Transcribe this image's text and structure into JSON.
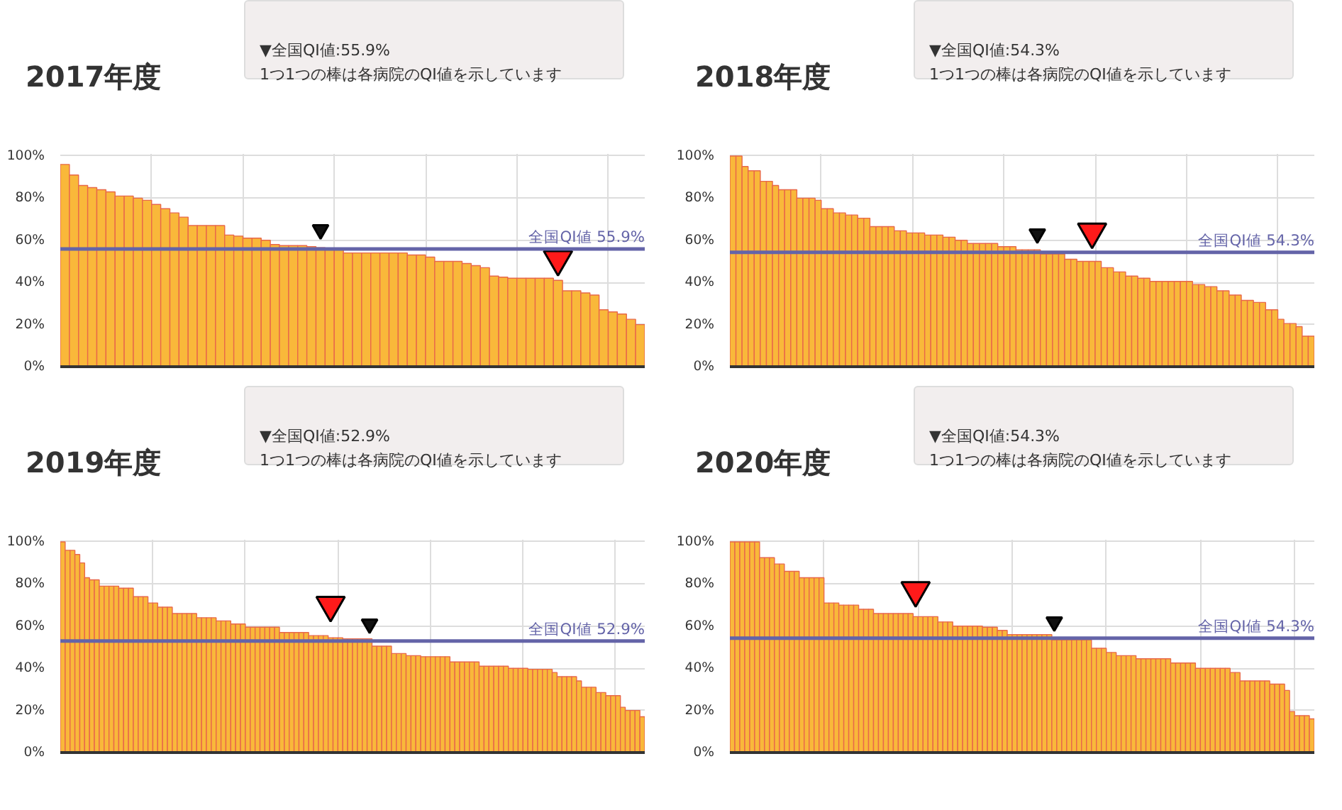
{
  "chart_data": [
    {
      "type": "bar",
      "title": "2017年度",
      "annotations": [
        "▼全国QI値:55.9%",
        "1つ1つの棒は各病院のQI値を示しています"
      ],
      "tick_labels": "y",
      "grid": true,
      "ylim": [
        0,
        101
      ],
      "yticks": [
        {
          "value": 0,
          "label": "0%"
        },
        {
          "value": 20,
          "label": "20%"
        },
        {
          "value": 40,
          "label": "40%"
        },
        {
          "value": 60,
          "label": "60%"
        },
        {
          "value": 80,
          "label": "80%"
        },
        {
          "value": 100,
          "label": "100%"
        }
      ],
      "ref_lines": [
        {
          "axis": "y",
          "value": 55.9,
          "label": "全国QI値 55.9%",
          "color": "#6464a8"
        }
      ],
      "categories": [
        null,
        null,
        null,
        null,
        null,
        null,
        null,
        null,
        null,
        null,
        null,
        null,
        null,
        null,
        null,
        null,
        null,
        null,
        null,
        null,
        null,
        null,
        null,
        null,
        null,
        null,
        null,
        null,
        null,
        null,
        null,
        null,
        null,
        null,
        null,
        null,
        null,
        null,
        null,
        null,
        null,
        null,
        null,
        null,
        null,
        null,
        null,
        null,
        null,
        null,
        null,
        null,
        null,
        null,
        null,
        null,
        null,
        null,
        null,
        null,
        null,
        null,
        null,
        null
      ],
      "series": [
        {
          "color": "#f9b83a",
          "values": [
            96,
            91,
            86,
            85,
            84,
            83,
            81,
            81,
            80,
            79,
            77,
            75,
            73,
            71,
            67,
            67,
            67,
            67,
            62.5,
            62,
            61,
            61,
            60,
            58,
            57.5,
            57.5,
            57.5,
            57,
            56.5,
            56,
            56,
            54,
            54,
            54,
            54,
            54,
            54,
            54,
            53,
            53,
            52,
            50,
            50,
            50,
            49,
            48,
            47,
            43,
            42.5,
            42,
            42,
            42,
            42,
            42,
            41,
            36,
            36,
            35,
            34,
            27,
            26,
            25,
            22.5,
            20
          ]
        },
        {
          "type": "scatter",
          "marker": "triangle",
          "color": "#111111",
          "values": [
            null,
            null,
            null,
            null,
            null,
            null,
            null,
            null,
            null,
            null,
            null,
            null,
            null,
            null,
            null,
            null,
            null,
            null,
            null,
            null,
            null,
            null,
            null,
            null,
            null,
            null,
            null,
            null,
            65,
            null,
            null,
            null,
            null,
            null,
            null,
            null,
            null,
            null,
            null,
            null,
            null,
            null,
            null,
            null,
            null,
            null,
            null,
            null,
            null,
            null,
            null,
            null,
            null,
            null,
            null,
            null,
            null,
            null,
            null,
            null,
            null,
            null,
            null,
            null
          ]
        },
        {
          "type": "scatter",
          "marker": "triangle",
          "color": "#ff1a1a",
          "values": [
            null,
            null,
            null,
            null,
            null,
            null,
            null,
            null,
            null,
            null,
            null,
            null,
            null,
            null,
            null,
            null,
            null,
            null,
            null,
            null,
            null,
            null,
            null,
            null,
            null,
            null,
            null,
            null,
            null,
            null,
            null,
            null,
            null,
            null,
            null,
            null,
            null,
            null,
            null,
            null,
            null,
            null,
            null,
            null,
            null,
            null,
            null,
            null,
            null,
            null,
            null,
            null,
            null,
            null,
            51,
            null,
            null,
            null,
            null,
            null,
            null,
            null,
            null,
            null
          ]
        }
      ]
    },
    {
      "type": "bar",
      "title": "2018年度",
      "annotations": [
        "▼全国QI値:54.3%",
        "1つ1つの棒は各病院のQI値を示しています"
      ],
      "tick_labels": "y",
      "grid": true,
      "ylim": [
        0,
        101
      ],
      "yticks": [
        {
          "value": 0,
          "label": "0%"
        },
        {
          "value": 20,
          "label": "20%"
        },
        {
          "value": 40,
          "label": "40%"
        },
        {
          "value": 60,
          "label": "60%"
        },
        {
          "value": 80,
          "label": "80%"
        },
        {
          "value": 100,
          "label": "100%"
        }
      ],
      "ref_lines": [
        {
          "axis": "y",
          "value": 54.3,
          "label": "全国QI値 54.3%",
          "color": "#6464a8"
        }
      ],
      "categories": [
        null,
        null,
        null,
        null,
        null,
        null,
        null,
        null,
        null,
        null,
        null,
        null,
        null,
        null,
        null,
        null,
        null,
        null,
        null,
        null,
        null,
        null,
        null,
        null,
        null,
        null,
        null,
        null,
        null,
        null,
        null,
        null,
        null,
        null,
        null,
        null,
        null,
        null,
        null,
        null,
        null,
        null,
        null,
        null,
        null,
        null,
        null,
        null,
        null,
        null,
        null,
        null,
        null,
        null,
        null,
        null,
        null,
        null,
        null,
        null,
        null,
        null,
        null,
        null,
        null,
        null,
        null,
        null,
        null,
        null,
        null,
        null,
        null,
        null,
        null,
        null,
        null,
        null,
        null,
        null,
        null,
        null,
        null,
        null,
        null,
        null,
        null,
        null,
        null,
        null,
        null,
        null,
        null,
        null,
        null,
        null
      ],
      "series": [
        {
          "color": "#f9b83a",
          "values": [
            100,
            100,
            95,
            93,
            93,
            88,
            88,
            86,
            84,
            84,
            84,
            80,
            80,
            80,
            79,
            75,
            75,
            73,
            73,
            72,
            72,
            70.5,
            70.5,
            66.5,
            66.5,
            66.5,
            66.5,
            64.5,
            64.5,
            63.5,
            63.5,
            63.5,
            62.5,
            62.5,
            62.5,
            61.5,
            61.5,
            60,
            60,
            58.5,
            58.5,
            58.5,
            58.5,
            58.5,
            57,
            57,
            57,
            55.5,
            55.5,
            55.5,
            55.5,
            53.5,
            53.5,
            53.5,
            53.5,
            51,
            51,
            50,
            50,
            50,
            50,
            47,
            47,
            45,
            45,
            43,
            43,
            42,
            42,
            40.5,
            40.5,
            40.5,
            40.5,
            40.5,
            40.5,
            40.5,
            39,
            39,
            38,
            38,
            36,
            36,
            34,
            34,
            31.5,
            31.5,
            30.5,
            30.5,
            27,
            27,
            22.5,
            20.5,
            20.5,
            19,
            14.5,
            14.5
          ]
        },
        {
          "type": "scatter",
          "marker": "triangle",
          "color": "#111111",
          "values": [
            null,
            null,
            null,
            null,
            null,
            null,
            null,
            null,
            null,
            null,
            null,
            null,
            null,
            null,
            null,
            null,
            null,
            null,
            null,
            null,
            null,
            null,
            null,
            null,
            null,
            null,
            null,
            null,
            null,
            null,
            null,
            null,
            null,
            null,
            null,
            null,
            null,
            null,
            null,
            null,
            null,
            null,
            null,
            null,
            null,
            null,
            null,
            null,
            null,
            null,
            63,
            null,
            null,
            null,
            null,
            null,
            null,
            null,
            null,
            null,
            null,
            null,
            null,
            null,
            null,
            null,
            null,
            null,
            null,
            null,
            null,
            null,
            null,
            null,
            null,
            null,
            null,
            null,
            null,
            null,
            null,
            null,
            null,
            null,
            null,
            null,
            null,
            null,
            null,
            null,
            null,
            null,
            null,
            null,
            null,
            null
          ]
        },
        {
          "type": "scatter",
          "marker": "triangle",
          "color": "#ff1a1a",
          "values": [
            null,
            null,
            null,
            null,
            null,
            null,
            null,
            null,
            null,
            null,
            null,
            null,
            null,
            null,
            null,
            null,
            null,
            null,
            null,
            null,
            null,
            null,
            null,
            null,
            null,
            null,
            null,
            null,
            null,
            null,
            null,
            null,
            null,
            null,
            null,
            null,
            null,
            null,
            null,
            null,
            null,
            null,
            null,
            null,
            null,
            null,
            null,
            null,
            null,
            null,
            null,
            null,
            null,
            null,
            null,
            null,
            null,
            null,
            null,
            64,
            null,
            null,
            null,
            null,
            null,
            null,
            null,
            null,
            null,
            null,
            null,
            null,
            null,
            null,
            null,
            null,
            null,
            null,
            null,
            null,
            null,
            null,
            null,
            null,
            null,
            null,
            null,
            null,
            null,
            null,
            null,
            null,
            null,
            null,
            null,
            null
          ]
        }
      ]
    },
    {
      "type": "bar",
      "title": "2019年度",
      "annotations": [
        "▼全国QI値:52.9%",
        "1つ1つの棒は各病院のQI値を示しています"
      ],
      "tick_labels": "y",
      "grid": true,
      "ylim": [
        0,
        101
      ],
      "yticks": [
        {
          "value": 0,
          "label": "0%"
        },
        {
          "value": 20,
          "label": "20%"
        },
        {
          "value": 40,
          "label": "40%"
        },
        {
          "value": 60,
          "label": "60%"
        },
        {
          "value": 80,
          "label": "80%"
        },
        {
          "value": 100,
          "label": "100%"
        }
      ],
      "ref_lines": [
        {
          "axis": "y",
          "value": 52.9,
          "label": "全国QI値 52.9%",
          "color": "#6464a8"
        }
      ],
      "categories": [
        null,
        null,
        null,
        null,
        null,
        null,
        null,
        null,
        null,
        null,
        null,
        null,
        null,
        null,
        null,
        null,
        null,
        null,
        null,
        null,
        null,
        null,
        null,
        null,
        null,
        null,
        null,
        null,
        null,
        null,
        null,
        null,
        null,
        null,
        null,
        null,
        null,
        null,
        null,
        null,
        null,
        null,
        null,
        null,
        null,
        null,
        null,
        null,
        null,
        null,
        null,
        null,
        null,
        null,
        null,
        null,
        null,
        null,
        null,
        null,
        null,
        null,
        null,
        null,
        null,
        null,
        null,
        null,
        null,
        null,
        null,
        null,
        null,
        null,
        null,
        null,
        null,
        null,
        null,
        null,
        null,
        null,
        null,
        null,
        null,
        null,
        null,
        null,
        null,
        null,
        null,
        null,
        null,
        null,
        null,
        null,
        null,
        null,
        null,
        null,
        null,
        null,
        null,
        null,
        null,
        null,
        null,
        null,
        null,
        null,
        null,
        null,
        null,
        null,
        null,
        null,
        null,
        null,
        null,
        null
      ],
      "series": [
        {
          "color": "#f9b83a",
          "values": [
            100,
            96,
            96,
            94,
            90,
            83,
            82,
            82,
            79,
            79,
            79,
            79,
            78,
            78,
            78,
            74,
            74,
            74,
            71,
            71,
            69,
            69,
            69,
            66,
            66,
            66,
            66,
            66,
            64,
            64,
            64,
            64,
            62.5,
            62.5,
            62.5,
            61,
            61,
            61,
            59.5,
            59.5,
            59.5,
            59.5,
            59.5,
            59.5,
            59.5,
            57,
            57,
            57,
            57,
            57,
            57,
            55.5,
            55.5,
            55.5,
            55.5,
            54.5,
            54.5,
            54.5,
            54,
            54,
            54,
            54,
            54,
            54,
            50.5,
            50.5,
            50.5,
            50.5,
            47,
            47,
            47,
            46,
            46,
            46,
            45.5,
            45.5,
            45.5,
            45.5,
            45.5,
            45.5,
            43,
            43,
            43,
            43,
            43,
            43,
            41,
            41,
            41,
            41,
            41,
            41,
            40,
            40,
            40,
            40,
            39.5,
            39.5,
            39.5,
            39.5,
            39.5,
            38,
            36,
            36,
            36,
            36,
            34,
            31,
            31,
            31,
            28.5,
            28.5,
            27,
            27,
            27,
            21.5,
            20,
            20,
            20,
            17
          ]
        },
        {
          "type": "scatter",
          "marker": "triangle",
          "color": "#111111",
          "values": [
            null,
            null,
            null,
            null,
            null,
            null,
            null,
            null,
            null,
            null,
            null,
            null,
            null,
            null,
            null,
            null,
            null,
            null,
            null,
            null,
            null,
            null,
            null,
            null,
            null,
            null,
            null,
            null,
            null,
            null,
            null,
            null,
            null,
            null,
            null,
            null,
            null,
            null,
            null,
            null,
            null,
            null,
            null,
            null,
            null,
            null,
            null,
            null,
            null,
            null,
            null,
            null,
            null,
            null,
            null,
            null,
            null,
            null,
            null,
            null,
            null,
            null,
            null,
            61,
            null,
            null,
            null,
            null,
            null,
            null,
            null,
            null,
            null,
            null,
            null,
            null,
            null,
            null,
            null,
            null,
            null,
            null,
            null,
            null,
            null,
            null,
            null,
            null,
            null,
            null,
            null,
            null,
            null,
            null,
            null,
            null,
            null,
            null,
            null,
            null,
            null,
            null,
            null,
            null,
            null,
            null,
            null,
            null,
            null,
            null,
            null,
            null,
            null,
            null,
            null,
            null,
            null,
            null,
            null,
            null
          ]
        },
        {
          "type": "scatter",
          "marker": "triangle",
          "color": "#ff1a1a",
          "values": [
            null,
            null,
            null,
            null,
            null,
            null,
            null,
            null,
            null,
            null,
            null,
            null,
            null,
            null,
            null,
            null,
            null,
            null,
            null,
            null,
            null,
            null,
            null,
            null,
            null,
            null,
            null,
            null,
            null,
            null,
            null,
            null,
            null,
            null,
            null,
            null,
            null,
            null,
            null,
            null,
            null,
            null,
            null,
            null,
            null,
            null,
            null,
            null,
            null,
            null,
            null,
            null,
            null,
            null,
            null,
            70,
            null,
            null,
            null,
            null,
            null,
            null,
            null,
            null,
            null,
            null,
            null,
            null,
            null,
            null,
            null,
            null,
            null,
            null,
            null,
            null,
            null,
            null,
            null,
            null,
            null,
            null,
            null,
            null,
            null,
            null,
            null,
            null,
            null,
            null,
            null,
            null,
            null,
            null,
            null,
            null,
            null,
            null,
            null,
            null,
            null,
            null,
            null,
            null,
            null,
            null,
            null,
            null,
            null,
            null,
            null,
            null,
            null,
            null,
            null,
            null,
            null,
            null,
            null,
            null
          ]
        }
      ]
    },
    {
      "type": "bar",
      "title": "2020年度",
      "annotations": [
        "▼全国QI値:54.3%",
        "1つ1つの棒は各病院のQI値を示しています"
      ],
      "tick_labels": "y",
      "grid": true,
      "ylim": [
        0,
        101
      ],
      "yticks": [
        {
          "value": 0,
          "label": "0%"
        },
        {
          "value": 20,
          "label": "20%"
        },
        {
          "value": 40,
          "label": "40%"
        },
        {
          "value": 60,
          "label": "60%"
        },
        {
          "value": 80,
          "label": "80%"
        },
        {
          "value": 100,
          "label": "100%"
        }
      ],
      "ref_lines": [
        {
          "axis": "y",
          "value": 54.3,
          "label": "全国QI値 54.3%",
          "color": "#6464a8"
        }
      ],
      "categories": [
        null,
        null,
        null,
        null,
        null,
        null,
        null,
        null,
        null,
        null,
        null,
        null,
        null,
        null,
        null,
        null,
        null,
        null,
        null,
        null,
        null,
        null,
        null,
        null,
        null,
        null,
        null,
        null,
        null,
        null,
        null,
        null,
        null,
        null,
        null,
        null,
        null,
        null,
        null,
        null,
        null,
        null,
        null,
        null,
        null,
        null,
        null,
        null,
        null,
        null,
        null,
        null,
        null,
        null,
        null,
        null,
        null,
        null,
        null,
        null,
        null,
        null,
        null,
        null,
        null,
        null,
        null,
        null,
        null,
        null,
        null,
        null,
        null,
        null,
        null,
        null,
        null,
        null,
        null,
        null,
        null,
        null,
        null,
        null,
        null,
        null,
        null,
        null,
        null,
        null,
        null,
        null,
        null,
        null,
        null,
        null,
        null,
        null,
        null,
        null,
        null,
        null,
        null,
        null,
        null,
        null,
        null,
        null,
        null,
        null,
        null,
        null,
        null,
        null,
        null,
        null,
        null,
        null
      ],
      "series": [
        {
          "color": "#f9b83a",
          "values": [
            100,
            100,
            100,
            100,
            100,
            100,
            92.5,
            92.5,
            92.5,
            89.5,
            89.5,
            86,
            86,
            86,
            83,
            83,
            83,
            83,
            83,
            71,
            71,
            71,
            70,
            70,
            70,
            70,
            68,
            68,
            68,
            66,
            66,
            66,
            66,
            66,
            66,
            66,
            66,
            64.5,
            64.5,
            64.5,
            64.5,
            64.5,
            62,
            62,
            62,
            60,
            60,
            60,
            60,
            60,
            60,
            59.5,
            59.5,
            59.5,
            58,
            58,
            56,
            56,
            56,
            56,
            56,
            56,
            56,
            56,
            56,
            53.5,
            53.5,
            53.5,
            53.5,
            53.5,
            53.5,
            53.5,
            53.5,
            49.5,
            49.5,
            49.5,
            47.5,
            47.5,
            46,
            46,
            46,
            46,
            44.5,
            44.5,
            44.5,
            44.5,
            44.5,
            44.5,
            44.5,
            42.5,
            42.5,
            42.5,
            42.5,
            42.5,
            40,
            40,
            40,
            40,
            40,
            40,
            40,
            38,
            38,
            34,
            34,
            34,
            34,
            34,
            34,
            32.5,
            32.5,
            32.5,
            29.5,
            19.5,
            17.5,
            17.5,
            17.5,
            16
          ]
        },
        {
          "type": "scatter",
          "marker": "triangle",
          "color": "#111111",
          "values": [
            null,
            null,
            null,
            null,
            null,
            null,
            null,
            null,
            null,
            null,
            null,
            null,
            null,
            null,
            null,
            null,
            null,
            null,
            null,
            null,
            null,
            null,
            null,
            null,
            null,
            null,
            null,
            null,
            null,
            null,
            null,
            null,
            null,
            null,
            null,
            null,
            null,
            null,
            null,
            null,
            null,
            null,
            null,
            null,
            null,
            null,
            null,
            null,
            null,
            null,
            null,
            null,
            null,
            null,
            null,
            null,
            null,
            null,
            null,
            null,
            null,
            null,
            null,
            null,
            null,
            62,
            null,
            null,
            null,
            null,
            null,
            null,
            null,
            null,
            null,
            null,
            null,
            null,
            null,
            null,
            null,
            null,
            null,
            null,
            null,
            null,
            null,
            null,
            null,
            null,
            null,
            null,
            null,
            null,
            null,
            null,
            null,
            null,
            null,
            null,
            null,
            null,
            null,
            null,
            null,
            null,
            null,
            null,
            null,
            null,
            null,
            null,
            null,
            null,
            null,
            null,
            null,
            null
          ]
        },
        {
          "type": "scatter",
          "marker": "triangle",
          "color": "#ff1a1a",
          "values": [
            null,
            null,
            null,
            null,
            null,
            null,
            null,
            null,
            null,
            null,
            null,
            null,
            null,
            null,
            null,
            null,
            null,
            null,
            null,
            null,
            null,
            null,
            null,
            null,
            null,
            null,
            null,
            null,
            null,
            null,
            null,
            null,
            null,
            null,
            null,
            null,
            null,
            77,
            null,
            null,
            null,
            null,
            null,
            null,
            null,
            null,
            null,
            null,
            null,
            null,
            null,
            null,
            null,
            null,
            null,
            null,
            null,
            null,
            null,
            null,
            null,
            null,
            null,
            null,
            null,
            null,
            null,
            null,
            null,
            null,
            null,
            null,
            null,
            null,
            null,
            null,
            null,
            null,
            null,
            null,
            null,
            null,
            null,
            null,
            null,
            null,
            null,
            null,
            null,
            null,
            null,
            null,
            null,
            null,
            null,
            null,
            null,
            null,
            null,
            null,
            null,
            null,
            null,
            null,
            null,
            null,
            null,
            null,
            null,
            null,
            null,
            null,
            null,
            null,
            null,
            null,
            null,
            null
          ]
        }
      ]
    }
  ]
}
